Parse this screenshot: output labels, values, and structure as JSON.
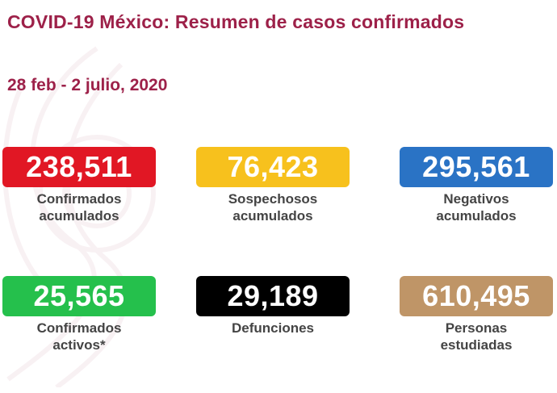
{
  "header": {
    "title": "COVID-19 México: Resumen de casos confirmados",
    "date_range": "28 feb - 2 julio, 2020"
  },
  "colors": {
    "title": "#9d2149",
    "caption": "#444444"
  },
  "cards": [
    {
      "value": "238,511",
      "label": "Confirmados\nacumulados",
      "color": "#e11724"
    },
    {
      "value": "76,423",
      "label": "Sospechosos\nacumulados",
      "color": "#f7c11d"
    },
    {
      "value": "295,561",
      "label": "Negativos\nacumulados",
      "color": "#2a73c5"
    },
    {
      "value": "25,565",
      "label": "Confirmados\nactivos*",
      "color": "#25c04c"
    },
    {
      "value": "29,189",
      "label": "Defunciones",
      "color": "#000000"
    },
    {
      "value": "610,495",
      "label": "Personas\nestudiadas",
      "color": "#bf9567"
    }
  ]
}
